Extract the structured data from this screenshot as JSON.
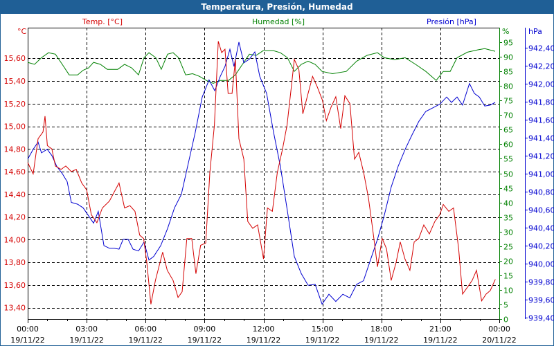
{
  "window": {
    "title": "Temperatura, Presión, Humedad"
  },
  "colors": {
    "temp": "#d40000",
    "hum": "#008000",
    "pres": "#0000d0",
    "title_bg": "#1f5f96"
  },
  "chart_data": {
    "type": "line",
    "title": "Temperatura, Presión, Humedad",
    "xlabel": "",
    "xlim_hours": [
      0,
      24
    ],
    "grid": true,
    "x_ticks": [
      {
        "time": "00:00",
        "date": "19/11/22"
      },
      {
        "time": "03:00",
        "date": "19/11/22"
      },
      {
        "time": "06:00",
        "date": "19/11/22"
      },
      {
        "time": "09:00",
        "date": "19/11/22"
      },
      {
        "time": "12:00",
        "date": "19/11/22"
      },
      {
        "time": "15:00",
        "date": "19/11/22"
      },
      {
        "time": "18:00",
        "date": "19/11/22"
      },
      {
        "time": "21:00",
        "date": "19/11/22"
      },
      {
        "time": "00:00",
        "date": "20/11/22"
      }
    ],
    "axes": {
      "temp": {
        "legend": "Temp. [°C]",
        "unit": "°C",
        "range": [
          13.3,
          15.87
        ],
        "ticks": [
          "13,40",
          "13,60",
          "13,80",
          "14,00",
          "14,20",
          "14,40",
          "14,60",
          "14,80",
          "15,00",
          "15,20",
          "15,40",
          "15,60"
        ],
        "tick_values": [
          13.4,
          13.6,
          13.8,
          14.0,
          14.2,
          14.4,
          14.6,
          14.8,
          15.0,
          15.2,
          15.4,
          15.6
        ]
      },
      "hum": {
        "legend": "Humedad [%]",
        "unit": "%",
        "range": [
          0,
          100
        ],
        "ticks": [
          "0",
          "5",
          "10",
          "15",
          "20",
          "25",
          "30",
          "35",
          "40",
          "45",
          "50",
          "55",
          "60",
          "65",
          "70",
          "75",
          "80",
          "85",
          "90",
          "95"
        ],
        "tick_values": [
          0,
          5,
          10,
          15,
          20,
          25,
          30,
          35,
          40,
          45,
          50,
          55,
          60,
          65,
          70,
          75,
          80,
          85,
          90,
          95
        ]
      },
      "pres": {
        "legend": "Presión [hPa]",
        "unit": "hPa",
        "range": [
          939.385,
          942.62
        ],
        "ticks": [
          "939,40",
          "939,60",
          "939,80",
          "940,00",
          "940,20",
          "940,40",
          "940,60",
          "940,80",
          "941,00",
          "941,20",
          "941,40",
          "941,60",
          "941,80",
          "942,00",
          "942,20",
          "942,40"
        ],
        "tick_values": [
          939.4,
          939.6,
          939.8,
          940.0,
          940.2,
          940.4,
          940.6,
          940.8,
          941.0,
          941.2,
          941.4,
          941.6,
          941.8,
          942.0,
          942.2,
          942.4
        ]
      }
    },
    "series": [
      {
        "name": "Temp. [°C]",
        "axis": "temp",
        "points": [
          [
            0,
            14.68
          ],
          [
            0.28,
            14.58
          ],
          [
            0.53,
            14.89
          ],
          [
            0.78,
            14.95
          ],
          [
            0.88,
            15.09
          ],
          [
            1.0,
            14.83
          ],
          [
            1.23,
            14.8
          ],
          [
            1.41,
            14.65
          ],
          [
            1.7,
            14.62
          ],
          [
            1.94,
            14.65
          ],
          [
            2.22,
            14.6
          ],
          [
            2.47,
            14.62
          ],
          [
            2.75,
            14.5
          ],
          [
            3.0,
            14.44
          ],
          [
            3.24,
            14.22
          ],
          [
            3.52,
            14.15
          ],
          [
            3.8,
            14.28
          ],
          [
            4.16,
            14.34
          ],
          [
            4.4,
            14.42
          ],
          [
            4.65,
            14.5
          ],
          [
            4.93,
            14.28
          ],
          [
            5.2,
            14.3
          ],
          [
            5.46,
            14.25
          ],
          [
            5.7,
            14.04
          ],
          [
            5.9,
            14.01
          ],
          [
            6.06,
            13.8
          ],
          [
            6.27,
            13.43
          ],
          [
            6.5,
            13.64
          ],
          [
            6.87,
            13.89
          ],
          [
            7.1,
            13.73
          ],
          [
            7.4,
            13.64
          ],
          [
            7.65,
            13.49
          ],
          [
            7.86,
            13.54
          ],
          [
            8.1,
            14.01
          ],
          [
            8.35,
            14.01
          ],
          [
            8.56,
            13.7
          ],
          [
            8.8,
            13.95
          ],
          [
            9.06,
            13.97
          ],
          [
            9.27,
            14.59
          ],
          [
            9.5,
            15.01
          ],
          [
            9.7,
            15.75
          ],
          [
            9.87,
            15.65
          ],
          [
            10.04,
            15.68
          ],
          [
            10.2,
            15.29
          ],
          [
            10.4,
            15.29
          ],
          [
            10.57,
            15.59
          ],
          [
            10.75,
            14.89
          ],
          [
            11.0,
            14.71
          ],
          [
            11.2,
            14.16
          ],
          [
            11.45,
            14.1
          ],
          [
            11.7,
            14.13
          ],
          [
            12.0,
            13.83
          ],
          [
            12.2,
            14.28
          ],
          [
            12.45,
            14.25
          ],
          [
            12.7,
            14.59
          ],
          [
            12.97,
            14.8
          ],
          [
            13.2,
            15.01
          ],
          [
            13.4,
            15.32
          ],
          [
            13.57,
            15.59
          ],
          [
            13.8,
            15.5
          ],
          [
            14.0,
            15.11
          ],
          [
            14.27,
            15.29
          ],
          [
            14.5,
            15.44
          ],
          [
            14.73,
            15.35
          ],
          [
            15.0,
            15.23
          ],
          [
            15.2,
            15.05
          ],
          [
            15.44,
            15.17
          ],
          [
            15.68,
            15.26
          ],
          [
            15.93,
            14.98
          ],
          [
            16.14,
            15.27
          ],
          [
            16.4,
            15.2
          ],
          [
            16.63,
            14.71
          ],
          [
            16.85,
            14.77
          ],
          [
            17.1,
            14.59
          ],
          [
            17.34,
            14.37
          ],
          [
            17.55,
            14.1
          ],
          [
            17.8,
            13.76
          ],
          [
            18.04,
            14.01
          ],
          [
            18.26,
            13.92
          ],
          [
            18.5,
            13.64
          ],
          [
            18.75,
            13.8
          ],
          [
            18.96,
            13.98
          ],
          [
            19.2,
            13.83
          ],
          [
            19.45,
            13.73
          ],
          [
            19.67,
            13.98
          ],
          [
            19.9,
            14.01
          ],
          [
            20.16,
            14.13
          ],
          [
            20.44,
            14.05
          ],
          [
            20.72,
            14.16
          ],
          [
            20.97,
            14.22
          ],
          [
            21.15,
            14.31
          ],
          [
            21.43,
            14.25
          ],
          [
            21.67,
            14.28
          ],
          [
            21.93,
            13.92
          ],
          [
            22.13,
            13.52
          ],
          [
            22.38,
            13.58
          ],
          [
            22.62,
            13.64
          ],
          [
            22.84,
            13.73
          ],
          [
            23.1,
            13.46
          ],
          [
            23.33,
            13.52
          ],
          [
            23.54,
            13.55
          ],
          [
            23.8,
            13.65
          ]
        ]
      },
      {
        "name": "Humedad [%]",
        "axis": "hum",
        "points": [
          [
            0,
            88.1
          ],
          [
            0.35,
            87.4
          ],
          [
            0.7,
            89.7
          ],
          [
            1.06,
            91.4
          ],
          [
            1.41,
            90.9
          ],
          [
            1.76,
            87.4
          ],
          [
            2.11,
            83.8
          ],
          [
            2.54,
            83.8
          ],
          [
            2.82,
            85.4
          ],
          [
            3.1,
            86.2
          ],
          [
            3.35,
            88.1
          ],
          [
            3.7,
            87.4
          ],
          [
            4.05,
            85.7
          ],
          [
            4.58,
            85.7
          ],
          [
            4.93,
            87.4
          ],
          [
            5.29,
            86.2
          ],
          [
            5.64,
            83.8
          ],
          [
            5.92,
            89.7
          ],
          [
            6.17,
            91.4
          ],
          [
            6.52,
            89.7
          ],
          [
            6.8,
            85.7
          ],
          [
            7.12,
            90.9
          ],
          [
            7.4,
            91.4
          ],
          [
            7.68,
            89.7
          ],
          [
            8.04,
            83.8
          ],
          [
            8.39,
            84.2
          ],
          [
            8.74,
            83.3
          ],
          [
            9.09,
            81.9
          ],
          [
            9.44,
            80.9
          ],
          [
            9.8,
            81.9
          ],
          [
            10.22,
            81.9
          ],
          [
            10.57,
            83.8
          ],
          [
            10.93,
            87.4
          ],
          [
            11.28,
            90.9
          ],
          [
            11.63,
            90.5
          ],
          [
            11.98,
            92.1
          ],
          [
            12.51,
            92.1
          ],
          [
            12.86,
            91.4
          ],
          [
            13.22,
            89.7
          ],
          [
            13.57,
            85.0
          ],
          [
            13.92,
            87.4
          ],
          [
            14.27,
            88.5
          ],
          [
            14.63,
            87.4
          ],
          [
            14.98,
            85.0
          ],
          [
            15.51,
            84.2
          ],
          [
            16.21,
            85.0
          ],
          [
            16.74,
            88.5
          ],
          [
            17.27,
            90.5
          ],
          [
            17.8,
            91.4
          ],
          [
            18.15,
            89.7
          ],
          [
            18.68,
            89.0
          ],
          [
            19.21,
            89.7
          ],
          [
            19.74,
            87.4
          ],
          [
            20.26,
            85.0
          ],
          [
            20.79,
            81.9
          ],
          [
            21.15,
            85.0
          ],
          [
            21.5,
            85.0
          ],
          [
            21.85,
            89.7
          ],
          [
            22.38,
            91.6
          ],
          [
            22.91,
            92.4
          ],
          [
            23.26,
            92.8
          ],
          [
            23.79,
            91.9
          ]
        ]
      },
      {
        "name": "Presión [hPa]",
        "axis": "pres",
        "points": [
          [
            0,
            941.16
          ],
          [
            0.28,
            941.27
          ],
          [
            0.53,
            941.35
          ],
          [
            0.7,
            941.23
          ],
          [
            0.99,
            941.27
          ],
          [
            1.23,
            941.2
          ],
          [
            1.48,
            941.08
          ],
          [
            1.76,
            941.0
          ],
          [
            2.01,
            940.91
          ],
          [
            2.22,
            940.68
          ],
          [
            2.54,
            940.66
          ],
          [
            2.82,
            940.62
          ],
          [
            3.07,
            940.54
          ],
          [
            3.35,
            940.45
          ],
          [
            3.59,
            940.58
          ],
          [
            3.88,
            940.2
          ],
          [
            4.16,
            940.17
          ],
          [
            4.41,
            940.17
          ],
          [
            4.65,
            940.16
          ],
          [
            4.86,
            940.27
          ],
          [
            5.11,
            940.27
          ],
          [
            5.36,
            940.16
          ],
          [
            5.64,
            940.14
          ],
          [
            5.92,
            940.24
          ],
          [
            6.17,
            940.04
          ],
          [
            6.41,
            940.08
          ],
          [
            6.77,
            940.2
          ],
          [
            7.12,
            940.39
          ],
          [
            7.47,
            940.62
          ],
          [
            7.82,
            940.77
          ],
          [
            8.18,
            941.12
          ],
          [
            8.53,
            941.46
          ],
          [
            8.88,
            941.85
          ],
          [
            9.23,
            942.04
          ],
          [
            9.52,
            941.92
          ],
          [
            9.8,
            942.08
          ],
          [
            10.04,
            942.19
          ],
          [
            10.29,
            942.38
          ],
          [
            10.5,
            942.19
          ],
          [
            10.75,
            942.46
          ],
          [
            11.0,
            942.23
          ],
          [
            11.28,
            942.27
          ],
          [
            11.56,
            942.35
          ],
          [
            11.81,
            942.08
          ],
          [
            12.16,
            941.89
          ],
          [
            12.51,
            941.46
          ],
          [
            12.86,
            941.08
          ],
          [
            13.22,
            940.58
          ],
          [
            13.57,
            940.08
          ],
          [
            13.92,
            939.89
          ],
          [
            14.27,
            939.76
          ],
          [
            14.63,
            939.77
          ],
          [
            14.98,
            939.55
          ],
          [
            15.33,
            939.66
          ],
          [
            15.68,
            939.58
          ],
          [
            16.04,
            939.66
          ],
          [
            16.39,
            939.62
          ],
          [
            16.74,
            939.77
          ],
          [
            17.09,
            939.81
          ],
          [
            17.44,
            940.04
          ],
          [
            17.8,
            940.27
          ],
          [
            18.15,
            940.54
          ],
          [
            18.5,
            940.85
          ],
          [
            18.85,
            941.08
          ],
          [
            19.21,
            941.27
          ],
          [
            19.56,
            941.43
          ],
          [
            19.91,
            941.58
          ],
          [
            20.26,
            941.69
          ],
          [
            20.62,
            941.73
          ],
          [
            20.97,
            941.77
          ],
          [
            21.32,
            941.85
          ],
          [
            21.57,
            941.79
          ],
          [
            21.85,
            941.85
          ],
          [
            22.13,
            941.76
          ],
          [
            22.48,
            942.0
          ],
          [
            22.73,
            941.89
          ],
          [
            22.98,
            941.85
          ],
          [
            23.26,
            941.75
          ],
          [
            23.54,
            941.76
          ],
          [
            23.79,
            941.79
          ]
        ]
      }
    ]
  }
}
